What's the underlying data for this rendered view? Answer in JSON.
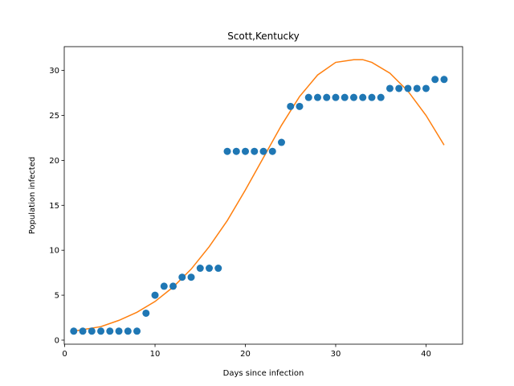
{
  "chart_data": {
    "type": "scatter",
    "title": "Scott,Kentucky",
    "xlabel": "Days since infection",
    "ylabel": "Population infected",
    "xlim": [
      -0.05,
      44.05
    ],
    "ylim": [
      -0.45,
      32.65
    ],
    "xticks": [
      0,
      10,
      20,
      30,
      40
    ],
    "yticks": [
      0,
      5,
      10,
      15,
      20,
      25,
      30
    ],
    "grid": false,
    "series": [
      {
        "kind": "scatter",
        "color": "#1f77b4",
        "x": [
          1,
          2,
          3,
          4,
          5,
          6,
          7,
          8,
          9,
          10,
          11,
          12,
          13,
          14,
          15,
          16,
          17,
          18,
          19,
          20,
          21,
          22,
          23,
          24,
          25,
          26,
          27,
          28,
          29,
          30,
          31,
          32,
          33,
          34,
          35,
          36,
          37,
          38,
          39,
          40,
          41,
          42
        ],
        "y": [
          1,
          1,
          1,
          1,
          1,
          1,
          1,
          1,
          3,
          5,
          6,
          6,
          7,
          7,
          8,
          8,
          8,
          21,
          21,
          21,
          21,
          21,
          21,
          22,
          26,
          26,
          27,
          27,
          27,
          27,
          27,
          27,
          27,
          27,
          27,
          28,
          28,
          28,
          28,
          28,
          29,
          29
        ]
      },
      {
        "kind": "line",
        "color": "#ff7f0e",
        "x": [
          1,
          4,
          6,
          8,
          10,
          12,
          14,
          16,
          18,
          20,
          22,
          24,
          26,
          28,
          30,
          32,
          33,
          34,
          36,
          38,
          40,
          42
        ],
        "y": [
          1.0,
          1.5,
          2.2,
          3.1,
          4.3,
          5.9,
          7.9,
          10.4,
          13.3,
          16.7,
          20.3,
          23.9,
          27.1,
          29.5,
          30.9,
          31.2,
          31.2,
          30.9,
          29.7,
          27.7,
          25.0,
          21.7
        ]
      }
    ]
  }
}
